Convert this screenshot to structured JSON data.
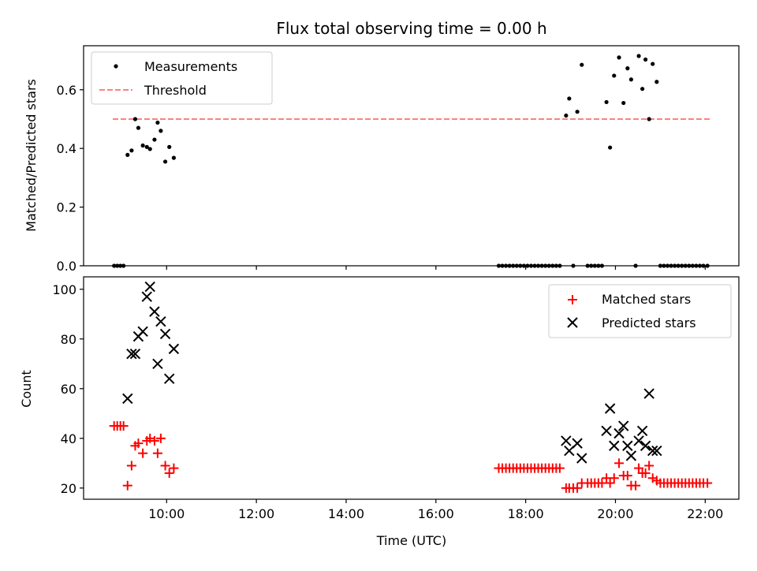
{
  "chart_data": [
    {
      "type": "scatter",
      "title": "Flux total observing time = 0.00 h",
      "xlabel": "",
      "ylabel": "Matched/Predicted stars",
      "xlim": [
        8.15,
        22.75
      ],
      "ylim": [
        0,
        0.75
      ],
      "yticks": [
        0.0,
        0.2,
        0.4,
        0.6
      ],
      "ytick_labels": [
        "0.0",
        "0.2",
        "0.4",
        "0.6"
      ],
      "xticks": [
        10,
        12,
        14,
        16,
        18,
        20,
        22
      ],
      "legend": {
        "position": "top-left",
        "entries": [
          "Measurements",
          "Threshold"
        ]
      },
      "threshold": {
        "name": "Threshold",
        "value": 0.5,
        "x_range": [
          8.8,
          22.1
        ],
        "color": "#ff8080"
      },
      "series": [
        {
          "name": "Measurements",
          "marker": "dot",
          "color": "#000000",
          "points": [
            [
              8.83,
              0.0
            ],
            [
              8.9,
              0.0
            ],
            [
              8.97,
              0.0
            ],
            [
              9.04,
              0.0
            ],
            [
              9.13,
              0.378
            ],
            [
              9.22,
              0.393
            ],
            [
              9.3,
              0.5
            ],
            [
              9.37,
              0.47
            ],
            [
              9.47,
              0.41
            ],
            [
              9.56,
              0.405
            ],
            [
              9.63,
              0.398
            ],
            [
              9.73,
              0.43
            ],
            [
              9.8,
              0.488
            ],
            [
              9.87,
              0.46
            ],
            [
              9.97,
              0.355
            ],
            [
              10.06,
              0.405
            ],
            [
              10.16,
              0.368
            ],
            [
              17.4,
              0.0
            ],
            [
              17.48,
              0.0
            ],
            [
              17.56,
              0.0
            ],
            [
              17.64,
              0.0
            ],
            [
              17.72,
              0.0
            ],
            [
              17.8,
              0.0
            ],
            [
              17.88,
              0.0
            ],
            [
              17.96,
              0.0
            ],
            [
              18.04,
              0.0
            ],
            [
              18.12,
              0.0
            ],
            [
              18.2,
              0.0
            ],
            [
              18.28,
              0.0
            ],
            [
              18.36,
              0.0
            ],
            [
              18.44,
              0.0
            ],
            [
              18.52,
              0.0
            ],
            [
              18.6,
              0.0
            ],
            [
              18.68,
              0.0
            ],
            [
              18.76,
              0.0
            ],
            [
              18.9,
              0.512
            ],
            [
              18.97,
              0.57
            ],
            [
              19.06,
              0.0
            ],
            [
              19.15,
              0.525
            ],
            [
              19.25,
              0.685
            ],
            [
              19.38,
              0.0
            ],
            [
              19.46,
              0.0
            ],
            [
              19.54,
              0.0
            ],
            [
              19.62,
              0.0
            ],
            [
              19.7,
              0.0
            ],
            [
              19.8,
              0.558
            ],
            [
              19.88,
              0.403
            ],
            [
              19.97,
              0.648
            ],
            [
              20.08,
              0.71
            ],
            [
              20.18,
              0.555
            ],
            [
              20.27,
              0.673
            ],
            [
              20.35,
              0.635
            ],
            [
              20.45,
              0.0
            ],
            [
              20.52,
              0.715
            ],
            [
              20.6,
              0.603
            ],
            [
              20.67,
              0.703
            ],
            [
              20.75,
              0.5
            ],
            [
              20.83,
              0.688
            ],
            [
              20.92,
              0.627
            ],
            [
              21.0,
              0.0
            ],
            [
              21.08,
              0.0
            ],
            [
              21.16,
              0.0
            ],
            [
              21.24,
              0.0
            ],
            [
              21.32,
              0.0
            ],
            [
              21.4,
              0.0
            ],
            [
              21.48,
              0.0
            ],
            [
              21.56,
              0.0
            ],
            [
              21.64,
              0.0
            ],
            [
              21.72,
              0.0
            ],
            [
              21.8,
              0.0
            ],
            [
              21.88,
              0.0
            ],
            [
              21.96,
              0.0
            ],
            [
              22.05,
              0.0
            ]
          ]
        }
      ]
    },
    {
      "type": "scatter",
      "title": "",
      "xlabel": "Time (UTC)",
      "ylabel": "Count",
      "xlim": [
        8.15,
        22.75
      ],
      "ylim": [
        15.5,
        105
      ],
      "yticks": [
        20,
        40,
        60,
        80,
        100
      ],
      "ytick_labels": [
        "20",
        "40",
        "60",
        "80",
        "100"
      ],
      "xticks": [
        10,
        12,
        14,
        16,
        18,
        20,
        22
      ],
      "xtick_labels": [
        "10:00",
        "12:00",
        "14:00",
        "16:00",
        "18:00",
        "20:00",
        "22:00"
      ],
      "legend": {
        "position": "top-right",
        "entries": [
          "Matched stars",
          "Predicted stars"
        ]
      },
      "series": [
        {
          "name": "Matched stars",
          "marker": "plus",
          "color": "#ff0000",
          "points": [
            [
              8.83,
              45
            ],
            [
              8.9,
              45
            ],
            [
              8.97,
              45
            ],
            [
              9.04,
              45
            ],
            [
              9.13,
              21
            ],
            [
              9.22,
              29
            ],
            [
              9.3,
              37
            ],
            [
              9.37,
              38
            ],
            [
              9.47,
              34
            ],
            [
              9.56,
              39
            ],
            [
              9.63,
              40
            ],
            [
              9.73,
              39
            ],
            [
              9.8,
              34
            ],
            [
              9.87,
              40
            ],
            [
              9.97,
              29
            ],
            [
              10.06,
              26
            ],
            [
              10.16,
              28
            ],
            [
              17.4,
              28
            ],
            [
              17.48,
              28
            ],
            [
              17.56,
              28
            ],
            [
              17.64,
              28
            ],
            [
              17.72,
              28
            ],
            [
              17.8,
              28
            ],
            [
              17.88,
              28
            ],
            [
              17.96,
              28
            ],
            [
              18.04,
              28
            ],
            [
              18.12,
              28
            ],
            [
              18.2,
              28
            ],
            [
              18.28,
              28
            ],
            [
              18.36,
              28
            ],
            [
              18.44,
              28
            ],
            [
              18.52,
              28
            ],
            [
              18.6,
              28
            ],
            [
              18.68,
              28
            ],
            [
              18.76,
              28
            ],
            [
              18.9,
              20
            ],
            [
              18.97,
              20
            ],
            [
              19.06,
              20
            ],
            [
              19.15,
              20
            ],
            [
              19.25,
              22
            ],
            [
              19.38,
              22
            ],
            [
              19.46,
              22
            ],
            [
              19.54,
              22
            ],
            [
              19.62,
              22
            ],
            [
              19.7,
              22
            ],
            [
              19.8,
              24
            ],
            [
              19.88,
              22
            ],
            [
              19.97,
              24
            ],
            [
              20.08,
              30
            ],
            [
              20.18,
              25
            ],
            [
              20.27,
              25
            ],
            [
              20.35,
              21
            ],
            [
              20.45,
              21
            ],
            [
              20.52,
              28
            ],
            [
              20.6,
              26
            ],
            [
              20.67,
              26
            ],
            [
              20.75,
              29
            ],
            [
              20.83,
              24
            ],
            [
              20.92,
              23
            ],
            [
              21.0,
              22
            ],
            [
              21.08,
              22
            ],
            [
              21.16,
              22
            ],
            [
              21.24,
              22
            ],
            [
              21.32,
              22
            ],
            [
              21.4,
              22
            ],
            [
              21.48,
              22
            ],
            [
              21.56,
              22
            ],
            [
              21.64,
              22
            ],
            [
              21.72,
              22
            ],
            [
              21.8,
              22
            ],
            [
              21.88,
              22
            ],
            [
              21.96,
              22
            ],
            [
              22.05,
              22
            ]
          ]
        },
        {
          "name": "Predicted stars",
          "marker": "x",
          "color": "#000000",
          "points": [
            [
              9.13,
              56
            ],
            [
              9.22,
              74
            ],
            [
              9.3,
              74
            ],
            [
              9.37,
              81
            ],
            [
              9.47,
              83
            ],
            [
              9.56,
              97
            ],
            [
              9.63,
              101
            ],
            [
              9.73,
              91
            ],
            [
              9.8,
              70
            ],
            [
              9.87,
              87
            ],
            [
              9.97,
              82
            ],
            [
              10.06,
              64
            ],
            [
              10.16,
              76
            ],
            [
              18.9,
              39
            ],
            [
              18.97,
              35
            ],
            [
              19.15,
              38
            ],
            [
              19.25,
              32
            ],
            [
              19.8,
              43
            ],
            [
              19.88,
              52
            ],
            [
              19.97,
              37
            ],
            [
              20.08,
              42
            ],
            [
              20.18,
              45
            ],
            [
              20.27,
              37
            ],
            [
              20.35,
              33
            ],
            [
              20.52,
              39
            ],
            [
              20.6,
              43
            ],
            [
              20.67,
              37
            ],
            [
              20.75,
              58
            ],
            [
              20.83,
              35
            ],
            [
              20.92,
              35
            ]
          ]
        }
      ]
    }
  ]
}
